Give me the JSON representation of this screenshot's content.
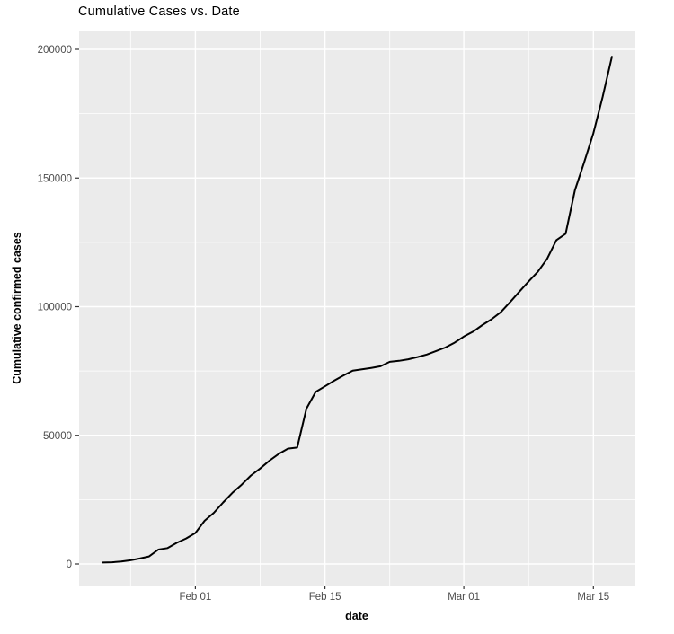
{
  "chart_data": {
    "type": "line",
    "title": "Cumulative Cases vs. Date",
    "xlabel": "date",
    "ylabel": "Cumulative confirmed cases",
    "legend": "none",
    "grid": "major and minor gridlines, white on grey panel",
    "xlim": [
      "2020-01-22",
      "2020-03-17"
    ],
    "ylim": [
      0,
      200000
    ],
    "x": [
      "2020-01-22",
      "2020-01-23",
      "2020-01-24",
      "2020-01-25",
      "2020-01-26",
      "2020-01-27",
      "2020-01-28",
      "2020-01-29",
      "2020-01-30",
      "2020-01-31",
      "2020-02-01",
      "2020-02-02",
      "2020-02-03",
      "2020-02-04",
      "2020-02-05",
      "2020-02-06",
      "2020-02-07",
      "2020-02-08",
      "2020-02-09",
      "2020-02-10",
      "2020-02-11",
      "2020-02-12",
      "2020-02-13",
      "2020-02-14",
      "2020-02-15",
      "2020-02-16",
      "2020-02-17",
      "2020-02-18",
      "2020-02-19",
      "2020-02-20",
      "2020-02-21",
      "2020-02-22",
      "2020-02-23",
      "2020-02-24",
      "2020-02-25",
      "2020-02-26",
      "2020-02-27",
      "2020-02-28",
      "2020-02-29",
      "2020-03-01",
      "2020-03-02",
      "2020-03-03",
      "2020-03-04",
      "2020-03-05",
      "2020-03-06",
      "2020-03-07",
      "2020-03-08",
      "2020-03-09",
      "2020-03-10",
      "2020-03-11",
      "2020-03-12",
      "2020-03-13",
      "2020-03-14",
      "2020-03-15",
      "2020-03-16",
      "2020-03-17"
    ],
    "series": [
      {
        "name": "cumulative confirmed cases",
        "values": [
          555,
          654,
          941,
          1434,
          2118,
          2927,
          5578,
          6166,
          8234,
          9927,
          12038,
          16787,
          19881,
          23892,
          27635,
          30817,
          34391,
          37120,
          40150,
          42762,
          44802,
          45221,
          60368,
          66885,
          69030,
          71224,
          73258,
          75136,
          75639,
          76197,
          76819,
          78572,
          78958,
          79561,
          80406,
          81388,
          82746,
          84112,
          86011,
          88369,
          90306,
          92840,
          95120,
          97882,
          101784,
          105821,
          109795,
          113561,
          118592,
          125865,
          128343,
          145193,
          156094,
          167446,
          181527,
          197142
        ]
      }
    ],
    "x_ticks": [
      {
        "label": "Feb 01",
        "date": "2020-02-01"
      },
      {
        "label": "Feb 15",
        "date": "2020-02-15"
      },
      {
        "label": "Mar 01",
        "date": "2020-03-01"
      },
      {
        "label": "Mar 15",
        "date": "2020-03-15"
      }
    ],
    "x_minor_dates": [
      "2020-01-25",
      "2020-02-08",
      "2020-02-22",
      "2020-03-08"
    ],
    "y_ticks": [
      {
        "label": "0",
        "value": 0
      },
      {
        "label": "50000",
        "value": 50000
      },
      {
        "label": "100000",
        "value": 100000
      },
      {
        "label": "150000",
        "value": 150000
      },
      {
        "label": "200000",
        "value": 200000
      }
    ],
    "y_minor_values": [
      25000,
      75000,
      125000,
      175000
    ],
    "colors": {
      "background": "#FFFFFF",
      "panel_bg": "#EBEBEB",
      "grid": "#FFFFFF",
      "line": "#000000",
      "tick_label": "#4D4D4D",
      "tick_mark": "#333333",
      "title_text": "#000000",
      "axis_title_text": "#000000"
    }
  }
}
